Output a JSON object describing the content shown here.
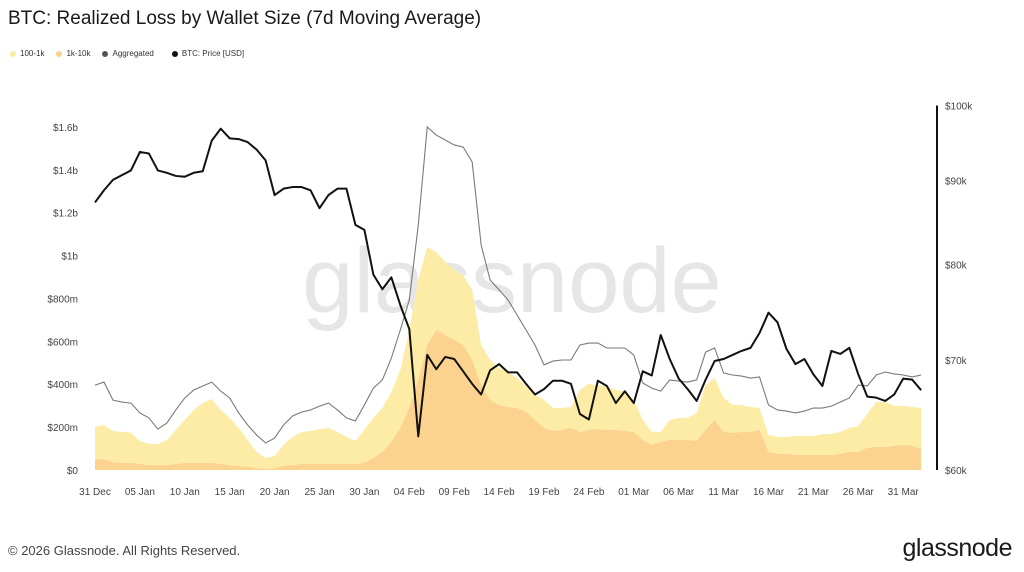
{
  "title": "BTC: Realized Loss by Wallet Size (7d Moving Average)",
  "footer": {
    "copyright": "© 2026 Glassnode. All Rights Reserved.",
    "logo": "glassnode",
    "watermark": "glassnode"
  },
  "chart_data": {
    "type": "area",
    "title": "BTC: Realized Loss by Wallet Size (7d Moving Average)",
    "legend_position": "top-left",
    "grid": false,
    "x": [
      "Dec 31",
      "Jan 1",
      "Jan 2",
      "Jan 3",
      "Jan 4",
      "Jan 5",
      "Jan 6",
      "Jan 7",
      "Jan 8",
      "Jan 9",
      "Jan 10",
      "Jan 11",
      "Jan 12",
      "Jan 13",
      "Jan 14",
      "Jan 15",
      "Jan 16",
      "Jan 17",
      "Jan 18",
      "Jan 19",
      "Jan 20",
      "Jan 21",
      "Jan 22",
      "Jan 23",
      "Jan 24",
      "Jan 25",
      "Jan 26",
      "Jan 27",
      "Jan 28",
      "Jan 29",
      "Jan 30",
      "Jan 31",
      "Feb 1",
      "Feb 2",
      "Feb 3",
      "Feb 4",
      "Feb 5",
      "Feb 6",
      "Feb 7",
      "Feb 8",
      "Feb 9",
      "Feb 10",
      "Feb 11",
      "Feb 12",
      "Feb 13",
      "Feb 14",
      "Feb 15",
      "Feb 16",
      "Feb 17",
      "Feb 18",
      "Feb 19",
      "Feb 20",
      "Feb 21",
      "Feb 22",
      "Feb 23",
      "Feb 24",
      "Feb 25",
      "Feb 26",
      "Feb 27",
      "Feb 28",
      "Mar 1",
      "Mar 2",
      "Mar 3",
      "Mar 4",
      "Mar 5",
      "Mar 6",
      "Mar 7",
      "Mar 8",
      "Mar 9",
      "Mar 10",
      "Mar 11",
      "Mar 12",
      "Mar 13",
      "Mar 14",
      "Mar 15",
      "Mar 16",
      "Mar 17",
      "Mar 18",
      "Mar 19",
      "Mar 20",
      "Mar 21",
      "Mar 22",
      "Mar 23",
      "Mar 24",
      "Mar 25",
      "Mar 26",
      "Mar 27",
      "Mar 28",
      "Mar 29",
      "Mar 30",
      "Mar 31",
      "Apr 1",
      "Apr 2"
    ],
    "x_tick_labels": [
      "31 Dec",
      "05 Jan",
      "10 Jan",
      "15 Jan",
      "20 Jan",
      "25 Jan",
      "30 Jan",
      "04 Feb",
      "09 Feb",
      "14 Feb",
      "19 Feb",
      "24 Feb",
      "01 Mar",
      "06 Mar",
      "11 Mar",
      "16 Mar",
      "21 Mar",
      "26 Mar",
      "31 Mar"
    ],
    "y_left": {
      "unit": "USD millions",
      "ylim": [
        0,
        1700
      ],
      "tick_values": [
        0,
        200,
        400,
        600,
        800,
        1000,
        1200,
        1400,
        1600
      ],
      "tick_labels": [
        "$0",
        "$200m",
        "$400m",
        "$600m",
        "$800m",
        "$1b",
        "$1.2b",
        "$1.4b",
        "$1.6b"
      ]
    },
    "y_right": {
      "unit": "USD thousands",
      "scale": "log",
      "ylim": [
        60,
        100
      ],
      "tick_values": [
        60,
        70,
        80,
        90,
        100
      ],
      "tick_labels": [
        "$60k",
        "$70k",
        "$80k",
        "$90k",
        "$100k"
      ]
    },
    "series": [
      {
        "name": "1k-10k",
        "kind": "stacked-area",
        "axis": "left",
        "color": "#fcd28f",
        "values": [
          47,
          51,
          37,
          33,
          33,
          28,
          23,
          23,
          23,
          28,
          33,
          33,
          33,
          33,
          28,
          23,
          19,
          14,
          9,
          5,
          9,
          19,
          23,
          28,
          28,
          28,
          28,
          28,
          28,
          28,
          33,
          56,
          84,
          131,
          196,
          289,
          420,
          583,
          653,
          630,
          606,
          583,
          513,
          396,
          326,
          303,
          294,
          289,
          270,
          233,
          196,
          182,
          187,
          196,
          177,
          187,
          191,
          187,
          187,
          182,
          177,
          140,
          117,
          131,
          140,
          140,
          140,
          135,
          187,
          233,
          177,
          173,
          177,
          177,
          187,
          84,
          75,
          75,
          70,
          70,
          70,
          70,
          70,
          75,
          84,
          84,
          103,
          107,
          107,
          112,
          117,
          112,
          98
        ]
      },
      {
        "name": "100-1k",
        "kind": "stacked-area",
        "axis": "left",
        "color": "#fdeca6",
        "values": [
          154,
          159,
          145,
          145,
          140,
          107,
          98,
          98,
          117,
          159,
          201,
          247,
          280,
          298,
          252,
          219,
          177,
          126,
          75,
          51,
          56,
          98,
          131,
          149,
          154,
          163,
          168,
          149,
          126,
          107,
          154,
          187,
          205,
          233,
          270,
          364,
          466,
          457,
          364,
          340,
          326,
          326,
          326,
          187,
          187,
          173,
          163,
          140,
          121,
          117,
          131,
          107,
          103,
          98,
          196,
          215,
          205,
          201,
          187,
          182,
          149,
          93,
          61,
          47,
          93,
          103,
          103,
          131,
          210,
          196,
          159,
          131,
          126,
          117,
          103,
          79,
          79,
          79,
          89,
          89,
          89,
          98,
          98,
          103,
          112,
          121,
          159,
          210,
          210,
          187,
          182,
          182,
          191
        ]
      },
      {
        "name": "Aggregated",
        "kind": "line",
        "axis": "left",
        "color": "#7a7a7a",
        "values": [
          396,
          410,
          326,
          317,
          312,
          266,
          243,
          191,
          219,
          280,
          336,
          373,
          392,
          410,
          368,
          336,
          266,
          210,
          163,
          126,
          149,
          210,
          252,
          270,
          280,
          298,
          312,
          280,
          243,
          229,
          303,
          382,
          420,
          522,
          653,
          793,
          1143,
          1600,
          1562,
          1539,
          1516,
          1506,
          1437,
          1049,
          886,
          840,
          793,
          723,
          653,
          583,
          490,
          508,
          513,
          513,
          583,
          592,
          592,
          569,
          569,
          569,
          536,
          406,
          382,
          368,
          420,
          415,
          410,
          420,
          550,
          569,
          452,
          443,
          438,
          429,
          434,
          303,
          280,
          275,
          266,
          275,
          289,
          289,
          298,
          317,
          336,
          396,
          392,
          443,
          457,
          448,
          443,
          434,
          443
        ]
      },
      {
        "name": "BTC: Price [USD]",
        "kind": "line",
        "axis": "right",
        "color": "#111111",
        "values": [
          87.3,
          88.8,
          90.1,
          90.7,
          91.3,
          93.7,
          93.5,
          91.3,
          91.0,
          90.6,
          90.5,
          91.0,
          91.2,
          95.2,
          96.8,
          95.5,
          95.4,
          95.0,
          94.0,
          92.6,
          88.2,
          89.0,
          89.2,
          89.2,
          88.8,
          86.6,
          88.2,
          89.0,
          89.0,
          84.6,
          84.0,
          78.9,
          77.3,
          78.6,
          75.6,
          73.1,
          62.9,
          70.5,
          69.1,
          70.3,
          70.1,
          68.9,
          67.7,
          66.7,
          69.0,
          69.6,
          68.8,
          68.8,
          67.7,
          66.7,
          67.2,
          68.0,
          68.0,
          67.7,
          64.9,
          64.4,
          68.0,
          67.5,
          65.9,
          67.0,
          65.9,
          68.9,
          68.5,
          72.5,
          70.1,
          68.2,
          67.2,
          66.1,
          68.1,
          69.9,
          70.1,
          70.5,
          70.9,
          71.2,
          72.7,
          74.8,
          73.8,
          71.1,
          69.6,
          70.1,
          68.6,
          67.5,
          70.9,
          70.6,
          71.2,
          68.6,
          66.5,
          66.4,
          66.1,
          66.7,
          68.2,
          68.1,
          67.1
        ]
      }
    ]
  }
}
